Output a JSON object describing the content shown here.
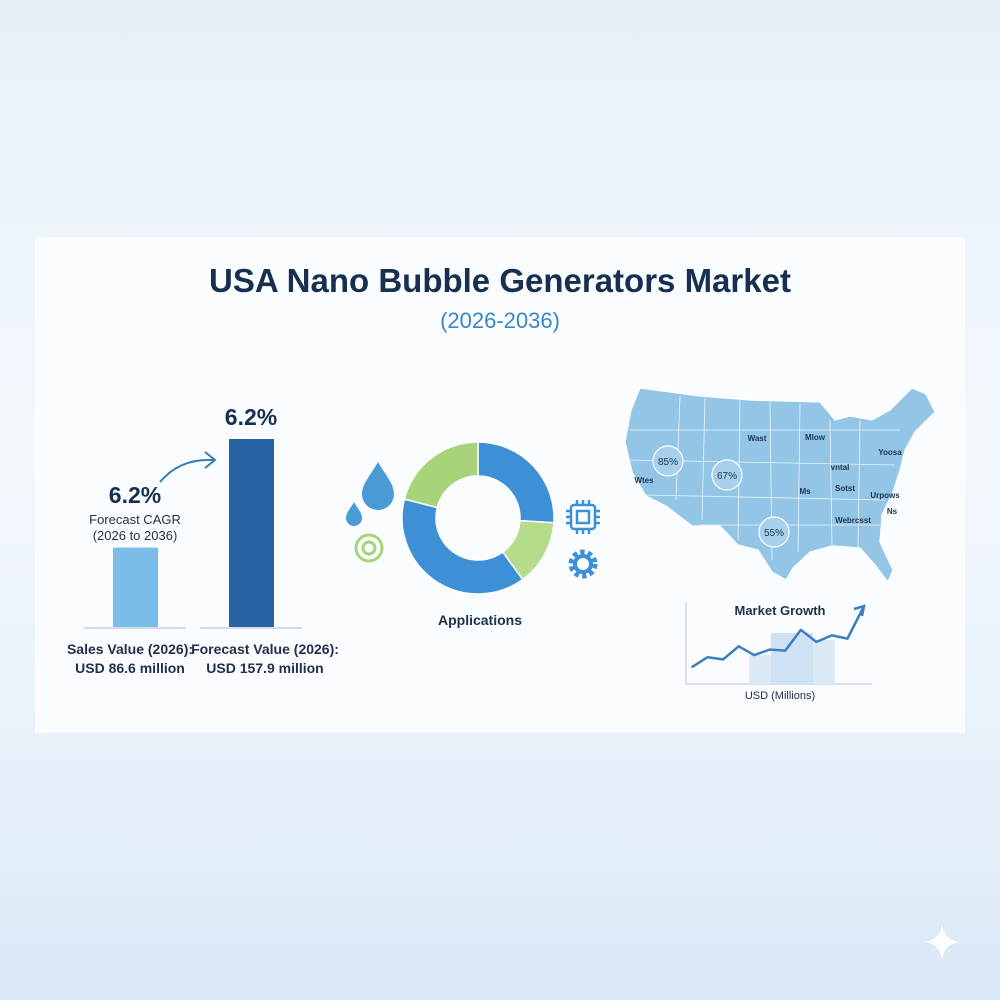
{
  "header": {
    "title": "USA Nano Bubble Generators Market",
    "subtitle": "(2026-2036)"
  },
  "colors": {
    "dark_blue": "#2563a3",
    "light_blue": "#79bde8",
    "mid_blue": "#3d8fd6",
    "green": "#a8d37a",
    "map": "#93c6e6",
    "title": "#17304f"
  },
  "cagr": {
    "value": "6.2%",
    "label": "Forecast CAGR",
    "period": "(2026 to 2036)",
    "top_value": "6.2%"
  },
  "chart_data": [
    {
      "type": "bar",
      "categories": [
        "Sales Value (2026)",
        "Forecast Value (2026)"
      ],
      "values": [
        86.6,
        157.9
      ],
      "labels": [
        {
          "line1": "Sales Value (2026):",
          "line2": "USD 86.6 million"
        },
        {
          "line1": "Forecast Value (2026):",
          "line2": "USD 157.9 million"
        }
      ],
      "unit": "USD million"
    },
    {
      "type": "pie",
      "title": "Applications",
      "values": [
        26,
        14,
        39,
        21
      ],
      "colors": [
        "#3d8fd6",
        "#b5dc8a",
        "#3d8fd6",
        "#a8d37a"
      ],
      "icons": [
        "water-drop-icon",
        "water-drop-small-icon",
        "ring-icon",
        "chip-icon",
        "gear-icon"
      ]
    },
    {
      "type": "line",
      "title": "Market Growth",
      "ylabel": "USD (Millions)",
      "values": [
        10,
        19,
        17,
        29,
        21,
        26,
        25,
        44,
        33,
        39,
        36,
        64
      ],
      "trend_arrow": true
    }
  ],
  "map": {
    "labels": [
      "Wast",
      "Mlow",
      "Yoosa",
      "vntal",
      "Ms",
      "Sotst",
      "Urpows",
      "Ns",
      "Webrcsst",
      "Wtes",
      "85%",
      "67%",
      "55%"
    ]
  }
}
